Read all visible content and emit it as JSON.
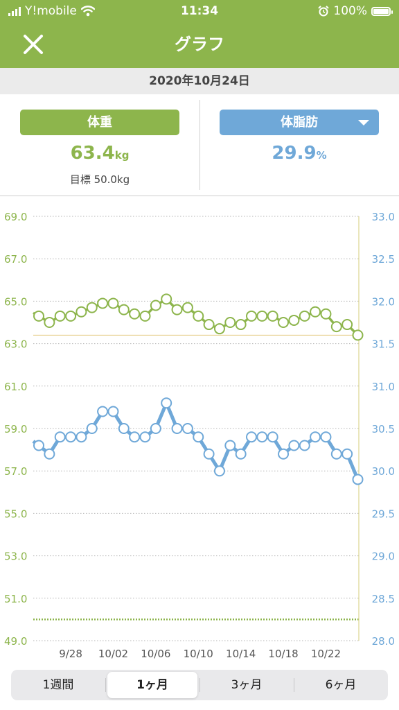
{
  "status_bar": {
    "carrier": "Y!mobile",
    "time": "11:34",
    "battery": "100%"
  },
  "header": {
    "title": "グラフ"
  },
  "date": "2020年10月24日",
  "weight": {
    "button_label": "体重",
    "value": "63.4",
    "unit": "kg",
    "goal_label": "目標 50.0kg",
    "color": "#8db54c"
  },
  "body_fat": {
    "button_label": "体脂肪",
    "value": "29.9",
    "unit": "%",
    "color": "#6fa8d8"
  },
  "periods": [
    {
      "label": "1週間",
      "selected": false
    },
    {
      "label": "1ヶ月",
      "selected": true
    },
    {
      "label": "3ヶ月",
      "selected": false
    },
    {
      "label": "6ヶ月",
      "selected": false
    }
  ],
  "chart_data": {
    "type": "line",
    "x_tick_labels": [
      "9/28",
      "10/02",
      "10/06",
      "10/10",
      "10/14",
      "10/18",
      "10/22"
    ],
    "y_left": {
      "ticks": [
        "69.0",
        "67.0",
        "65.0",
        "63.0",
        "61.0",
        "59.0",
        "57.0",
        "55.0",
        "53.0",
        "51.0",
        "49.0"
      ],
      "min": 49.0,
      "max": 69.0,
      "color": "#8db54c"
    },
    "y_right": {
      "ticks": [
        "33.0",
        "32.5",
        "32.0",
        "31.5",
        "31.0",
        "30.5",
        "30.0",
        "29.5",
        "29.0",
        "28.5",
        "28.0"
      ],
      "min": 28.0,
      "max": 33.0,
      "color": "#6fa8d8"
    },
    "grid": true,
    "goal_weight": 50.0,
    "current_weight": 63.4,
    "series": [
      {
        "axis": "left",
        "color": "#8db54c",
        "values": [
          64.3,
          64.0,
          64.3,
          64.3,
          64.5,
          64.7,
          64.9,
          64.9,
          64.6,
          64.4,
          64.3,
          64.8,
          65.1,
          64.6,
          64.7,
          64.3,
          63.9,
          63.7,
          64.0,
          63.9,
          64.3,
          64.3,
          64.3,
          64.0,
          64.1,
          64.3,
          64.5,
          64.4,
          63.8,
          63.9,
          63.4
        ]
      },
      {
        "axis": "right",
        "color": "#6fa8d8",
        "values": [
          30.3,
          30.2,
          30.4,
          30.4,
          30.4,
          30.5,
          30.7,
          30.7,
          30.5,
          30.4,
          30.4,
          30.5,
          30.8,
          30.5,
          30.5,
          30.4,
          30.2,
          30.0,
          30.3,
          30.2,
          30.4,
          30.4,
          30.4,
          30.2,
          30.3,
          30.3,
          30.4,
          30.4,
          30.2,
          30.2,
          29.9
        ]
      }
    ]
  }
}
